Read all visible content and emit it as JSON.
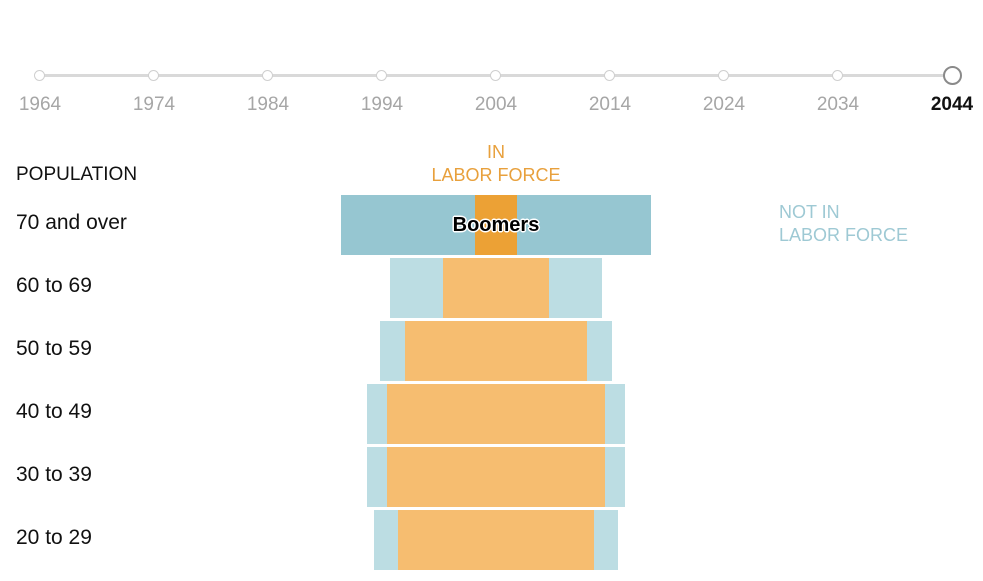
{
  "timeline": {
    "years": [
      "1964",
      "1974",
      "1984",
      "1994",
      "2004",
      "2014",
      "2024",
      "2034",
      "2044"
    ],
    "selected": "2044"
  },
  "headers": {
    "population": "POPULATION",
    "in_labor_force": [
      "IN",
      "LABOR FORCE"
    ],
    "not_in_labor_force": [
      "NOT IN",
      "LABOR FORCE"
    ]
  },
  "colors": {
    "not_in_labor": "#bcdde3",
    "not_in_labor_highlight": "#96c6d1",
    "in_labor": "#f6bd70",
    "in_labor_highlight": "#eca135"
  },
  "chart_data": {
    "type": "bar",
    "year": "2044",
    "categories": [
      "70 and over",
      "60 to 69",
      "50 to 59",
      "40 to 49",
      "30 to 39",
      "20 to 29"
    ],
    "series": [
      {
        "name": "IN LABOR FORCE",
        "values": [
          7.5,
          19,
          32.5,
          39,
          39,
          35
        ]
      },
      {
        "name": "NOT IN LABOR FORCE",
        "values": [
          48,
          19.5,
          9.5,
          7.5,
          7.5,
          9
        ]
      }
    ],
    "highlight": {
      "category": "70 and over",
      "tag": "Boomers"
    }
  }
}
